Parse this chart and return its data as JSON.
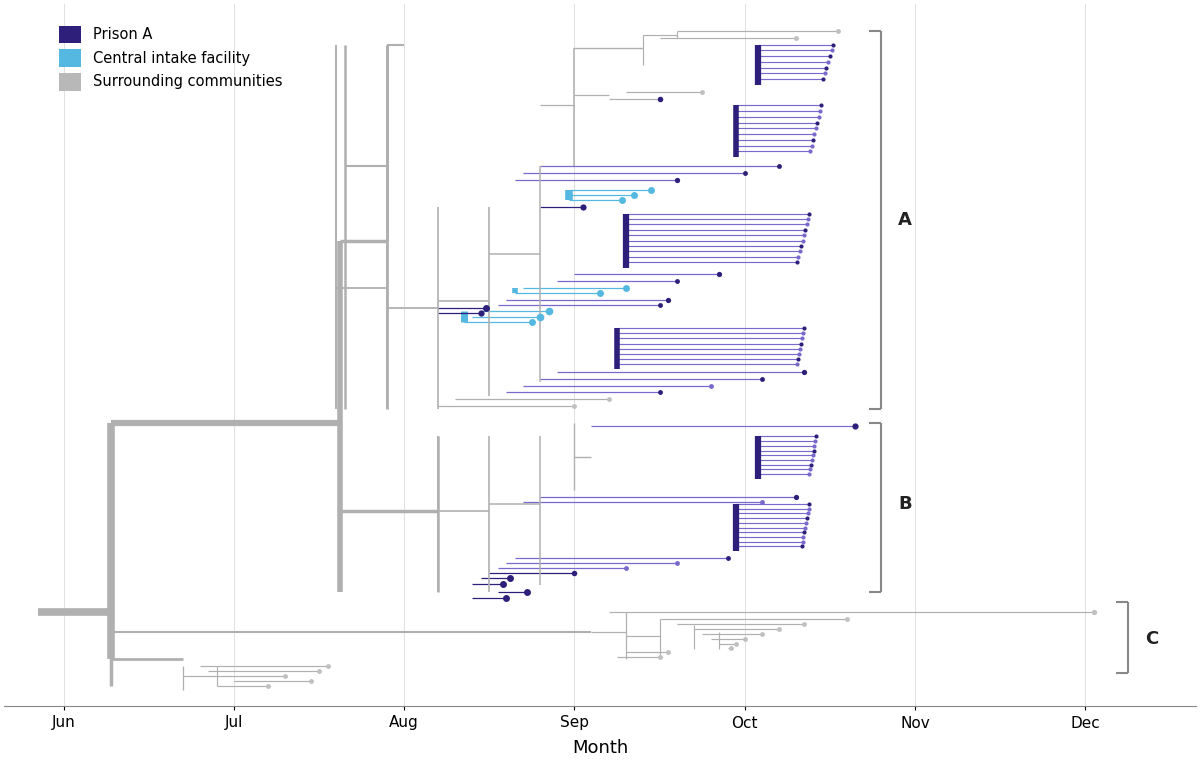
{
  "xlabel": "Month",
  "legend": [
    {
      "label": "Prison A",
      "color": "#2d1f7a"
    },
    {
      "label": "Central intake facility",
      "color": "#55b8e0"
    },
    {
      "label": "Surrounding communities",
      "color": "#b8b8b8"
    }
  ],
  "x_months": [
    "Jun",
    "Jul",
    "Aug",
    "Sep",
    "Oct",
    "Nov",
    "Dec"
  ],
  "prison_color": "#2d1f7a",
  "intake_color": "#55b8e0",
  "community_color": "#c0c0c0",
  "purple_line": "#7b68cc",
  "gray_line": "#b0b0b0",
  "grid_color": "#e0e0e0",
  "background": "#ffffff"
}
